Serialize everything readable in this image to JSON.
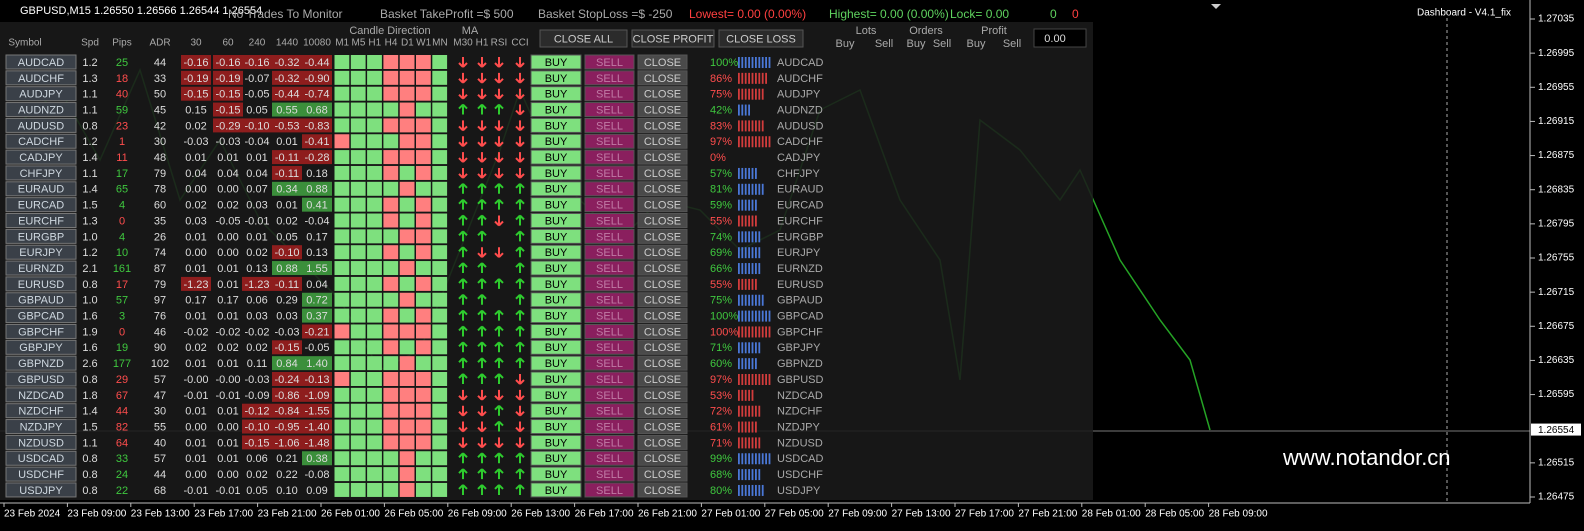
{
  "topbar": {
    "symbol": "GBPUSD,M15  1.26550 1.26566 1.26544 1.26554",
    "status": "No Trades To Monitor",
    "take_profit": "Basket TakeProfit =$ 500",
    "stop_loss": "Basket StopLoss =$ -250",
    "lowest": "Lowest= 0.00 (0.00%)",
    "highest": "Highest= 0.00 (0.00%)",
    "lock": "Lock= 0.00",
    "count_buy": "0",
    "count_sell": "0",
    "dashboard": "Dashboard - V4.1_fix"
  },
  "header": {
    "columns": [
      "Symbol",
      "Spd",
      "Pips",
      "ADR",
      "30",
      "60",
      "240",
      "1440",
      "10080"
    ],
    "candle_title": "Candle Direction",
    "candle_cols": [
      "M1",
      "M5",
      "H1",
      "H4",
      "D1",
      "W1",
      "MN"
    ],
    "ma_title": "MA",
    "ind_cols": [
      "M30",
      "H1",
      "RSI",
      "CCI"
    ],
    "close_all": "CLOSE ALL",
    "close_profit": "CLOSE PROFIT",
    "close_loss": "CLOSE LOSS",
    "lots": "Lots",
    "orders": "Orders",
    "profit": "Profit",
    "buy": "Buy",
    "sell": "Sell",
    "total": "0.00"
  },
  "buttons": {
    "buy": "BUY",
    "sell": "SELL",
    "close": "CLOSE"
  },
  "rows": [
    {
      "symbol": "AUDCAD",
      "spd": "1.2",
      "pips": "25",
      "adr": "44",
      "chg": [
        "-0.16",
        "-0.16",
        "-0.16",
        "-0.32",
        "-0.44"
      ],
      "candles": "GGGRRRG",
      "ind": "DDDD",
      "pct": "100%",
      "dir": "buy"
    },
    {
      "symbol": "AUDCHF",
      "spd": "1.3",
      "pips": "18",
      "adr": "33",
      "chg": [
        "-0.19",
        "-0.19",
        "-0.07",
        "-0.32",
        "-0.90"
      ],
      "candles": "GGGRRRG",
      "ind": "DDDD",
      "pct": "86%",
      "dir": "sell"
    },
    {
      "symbol": "AUDJPY",
      "spd": "1.1",
      "pips": "40",
      "adr": "50",
      "chg": [
        "-0.15",
        "-0.15",
        "-0.05",
        "-0.44",
        "-0.74"
      ],
      "candles": "GGGRRRG",
      "ind": "DDDD",
      "pct": "75%",
      "dir": "sell"
    },
    {
      "symbol": "AUDNZD",
      "spd": "1.1",
      "pips": "59",
      "adr": "45",
      "chg": [
        "0.15",
        "-0.15",
        "0.05",
        "0.55",
        "0.68"
      ],
      "candles": "GGGGRGG",
      "ind": "UUUD",
      "pct": "42%",
      "dir": "buy"
    },
    {
      "symbol": "AUDUSD",
      "spd": "0.8",
      "pips": "23",
      "adr": "42",
      "chg": [
        "0.02",
        "-0.29",
        "-0.10",
        "-0.53",
        "-0.83"
      ],
      "candles": "GGGRRRG",
      "ind": "DDDD",
      "pct": "83%",
      "dir": "sell"
    },
    {
      "symbol": "CADCHF",
      "spd": "1.2",
      "pips": "1",
      "adr": "30",
      "chg": [
        "-0.03",
        "-0.03",
        "-0.04",
        "0.01",
        "-0.41"
      ],
      "candles": "RGGGRRG",
      "ind": "DDDD",
      "pct": "97%",
      "dir": "sell"
    },
    {
      "symbol": "CADJPY",
      "spd": "1.4",
      "pips": "11",
      "adr": "48",
      "chg": [
        "0.01",
        "0.01",
        "0.01",
        "-0.11",
        "-0.28"
      ],
      "candles": "GGGRRRG",
      "ind": "DDDD",
      "pct": "0%",
      "dir": "sell"
    },
    {
      "symbol": "CHFJPY",
      "spd": "1.1",
      "pips": "17",
      "adr": "79",
      "chg": [
        "0.04",
        "0.04",
        "0.04",
        "-0.11",
        "0.18"
      ],
      "candles": "GGGRGRG",
      "ind": "DDDD",
      "pct": "57%",
      "dir": "buy"
    },
    {
      "symbol": "EURAUD",
      "spd": "1.4",
      "pips": "65",
      "adr": "78",
      "chg": [
        "0.00",
        "0.00",
        "0.07",
        "0.34",
        "0.88"
      ],
      "candles": "GGGGRGG",
      "ind": "UUUU",
      "pct": "81%",
      "dir": "buy"
    },
    {
      "symbol": "EURCAD",
      "spd": "1.5",
      "pips": "4",
      "adr": "60",
      "chg": [
        "0.02",
        "0.02",
        "0.03",
        "0.01",
        "0.41"
      ],
      "candles": "GGGRGRG",
      "ind": "UUUU",
      "pct": "59%",
      "dir": "buy"
    },
    {
      "symbol": "EURCHF",
      "spd": "1.3",
      "pips": "0",
      "adr": "35",
      "chg": [
        "0.03",
        "-0.05",
        "-0.01",
        "0.02",
        "-0.04"
      ],
      "candles": "GGGRGRG",
      "ind": "UUDU",
      "pct": "55%",
      "dir": "sell"
    },
    {
      "symbol": "EURGBP",
      "spd": "1.0",
      "pips": "4",
      "adr": "26",
      "chg": [
        "0.01",
        "0.00",
        "0.01",
        "0.05",
        "0.17"
      ],
      "candles": "GGGGRRG",
      "ind": "UU U",
      "pct": "74%",
      "dir": "buy"
    },
    {
      "symbol": "EURJPY",
      "spd": "1.2",
      "pips": "10",
      "adr": "74",
      "chg": [
        "0.00",
        "0.00",
        "0.02",
        "-0.10",
        "0.13"
      ],
      "candles": "GGGRGRG",
      "ind": "UDDU",
      "pct": "69%",
      "dir": "buy"
    },
    {
      "symbol": "EURNZD",
      "spd": "2.1",
      "pips": "161",
      "adr": "87",
      "chg": [
        "0.01",
        "0.01",
        "0.13",
        "0.88",
        "1.55"
      ],
      "candles": "GGGGRGG",
      "ind": "UU U",
      "pct": "66%",
      "dir": "buy"
    },
    {
      "symbol": "EURUSD",
      "spd": "0.8",
      "pips": "17",
      "adr": "79",
      "chg": [
        "-1.23",
        "0.01",
        "-1.23",
        "-0.11",
        "0.04"
      ],
      "candles": "GGGRGRG",
      "ind": "UUUU",
      "pct": "55%",
      "dir": "sell"
    },
    {
      "symbol": "GBPAUD",
      "spd": "1.0",
      "pips": "57",
      "adr": "97",
      "chg": [
        "0.17",
        "0.17",
        "0.06",
        "0.29",
        "0.72"
      ],
      "candles": "GGGGRGG",
      "ind": "UU U",
      "pct": "75%",
      "dir": "buy"
    },
    {
      "symbol": "GBPCAD",
      "spd": "1.6",
      "pips": "3",
      "adr": "76",
      "chg": [
        "0.01",
        "0.01",
        "0.03",
        "0.03",
        "0.37"
      ],
      "candles": "GGGRGRG",
      "ind": "UUUU",
      "pct": "100%",
      "dir": "buy"
    },
    {
      "symbol": "GBPCHF",
      "spd": "1.9",
      "pips": "0",
      "adr": "46",
      "chg": [
        "-0.02",
        "-0.02",
        "-0.02",
        "-0.03",
        "-0.21"
      ],
      "candles": "RGGRRRG",
      "ind": "UUUU",
      "pct": "100%",
      "dir": "sell"
    },
    {
      "symbol": "GBPJPY",
      "spd": "1.6",
      "pips": "19",
      "adr": "90",
      "chg": [
        "0.02",
        "0.02",
        "0.02",
        "-0.15",
        "-0.05"
      ],
      "candles": "GGGRGRG",
      "ind": "UUUU",
      "pct": "71%",
      "dir": "buy"
    },
    {
      "symbol": "GBPNZD",
      "spd": "2.6",
      "pips": "177",
      "adr": "102",
      "chg": [
        "0.01",
        "0.01",
        "0.11",
        "0.84",
        "1.40"
      ],
      "candles": "GGGGRGG",
      "ind": "UUUU",
      "pct": "60%",
      "dir": "buy"
    },
    {
      "symbol": "GBPUSD",
      "spd": "0.8",
      "pips": "29",
      "adr": "57",
      "chg": [
        "-0.00",
        "-0.00",
        "-0.03",
        "-0.24",
        "-0.13"
      ],
      "candles": "RGGRRRG",
      "ind": "UUUD",
      "pct": "97%",
      "dir": "sell"
    },
    {
      "symbol": "NZDCAD",
      "spd": "1.8",
      "pips": "67",
      "adr": "47",
      "chg": [
        "-0.01",
        "-0.01",
        "-0.09",
        "-0.86",
        "-1.09"
      ],
      "candles": "GGGRRRG",
      "ind": "DDDD",
      "pct": "53%",
      "dir": "sell"
    },
    {
      "symbol": "NZDCHF",
      "spd": "1.4",
      "pips": "44",
      "adr": "30",
      "chg": [
        "0.01",
        "0.01",
        "-0.12",
        "-0.84",
        "-1.55"
      ],
      "candles": "GGGRRRG",
      "ind": "DDUD",
      "pct": "72%",
      "dir": "sell"
    },
    {
      "symbol": "NZDJPY",
      "spd": "1.5",
      "pips": "82",
      "adr": "55",
      "chg": [
        "0.00",
        "0.00",
        "-0.10",
        "-0.95",
        "-1.40"
      ],
      "candles": "GGGRRRG",
      "ind": "DDUD",
      "pct": "61%",
      "dir": "sell"
    },
    {
      "symbol": "NZDUSD",
      "spd": "1.1",
      "pips": "64",
      "adr": "40",
      "chg": [
        "0.01",
        "0.01",
        "-0.15",
        "-1.06",
        "-1.48"
      ],
      "candles": "GGGRRRG",
      "ind": "DDDD",
      "pct": "71%",
      "dir": "sell"
    },
    {
      "symbol": "USDCAD",
      "spd": "0.8",
      "pips": "33",
      "adr": "57",
      "chg": [
        "0.01",
        "0.01",
        "0.06",
        "0.21",
        "0.38"
      ],
      "candles": "GGGGRGG",
      "ind": "UUUU",
      "pct": "99%",
      "dir": "buy"
    },
    {
      "symbol": "USDCHF",
      "spd": "0.8",
      "pips": "24",
      "adr": "44",
      "chg": [
        "0.00",
        "0.00",
        "0.02",
        "0.22",
        "-0.08"
      ],
      "candles": "GGGGRGG",
      "ind": "UUUU",
      "pct": "68%",
      "dir": "buy"
    },
    {
      "symbol": "USDJPY",
      "spd": "0.8",
      "pips": "22",
      "adr": "68",
      "chg": [
        "-0.01",
        "-0.01",
        "0.05",
        "0.10",
        "0.09"
      ],
      "candles": "GGGGRGG",
      "ind": "UUUU",
      "pct": "80%",
      "dir": "buy"
    }
  ],
  "price_axis": {
    "ticks": [
      "1.27035",
      "1.26995",
      "1.26955",
      "1.26915",
      "1.26875",
      "1.26835",
      "1.26795",
      "1.26755",
      "1.26715",
      "1.26675",
      "1.26635",
      "1.26595",
      "1.26515",
      "1.26475"
    ],
    "current": "1.26554"
  },
  "time_axis": [
    "23 Feb 2024",
    "23 Feb 09:00",
    "23 Feb 13:00",
    "23 Feb 17:00",
    "23 Feb 21:00",
    "26 Feb 01:00",
    "26 Feb 05:00",
    "26 Feb 09:00",
    "26 Feb 13:00",
    "26 Feb 17:00",
    "26 Feb 21:00",
    "27 Feb 01:00",
    "27 Feb 05:00",
    "27 Feb 09:00",
    "27 Feb 13:00",
    "27 Feb 17:00",
    "27 Feb 21:00",
    "28 Feb 01:00",
    "28 Feb 05:00",
    "28 Feb 09:00"
  ],
  "watermark": "www.notandor.cn"
}
